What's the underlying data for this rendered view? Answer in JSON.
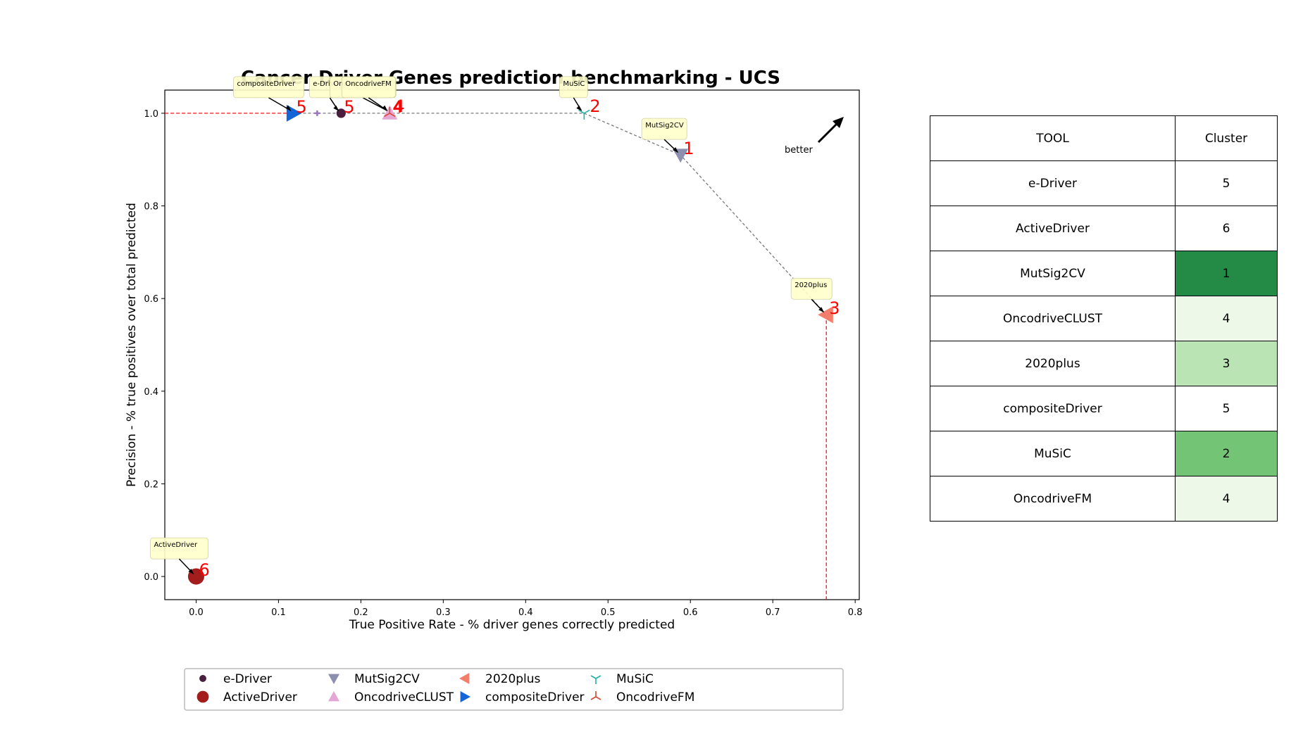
{
  "chart_data": {
    "type": "scatter",
    "title": "Cancer Driver Genes prediction benchmarking - UCS",
    "xlabel": "True Positive Rate - % driver genes correctly predicted",
    "ylabel": "Precision - % true positives over total predicted",
    "xlim": [
      -0.038,
      0.805
    ],
    "ylim": [
      -0.05,
      1.05
    ],
    "xticks": [
      "0.0",
      "0.1",
      "0.2",
      "0.3",
      "0.4",
      "0.5",
      "0.6",
      "0.7",
      "0.8"
    ],
    "yticks": [
      "0.0",
      "0.2",
      "0.4",
      "0.6",
      "0.8",
      "1.0"
    ],
    "grid": false,
    "legend_position": "bottom",
    "better_label": "better",
    "series": [
      {
        "name": "e-Driver",
        "x": 0.176,
        "y": 1.0,
        "marker": "circle-small",
        "color": "#4a1f3e",
        "cluster": "5",
        "annotation": "e-Driver"
      },
      {
        "name": "ActiveDriver",
        "x": 0.0,
        "y": 0.0,
        "marker": "circle-large",
        "color": "#a31d1d",
        "cluster": "6",
        "annotation": "ActiveDriver"
      },
      {
        "name": "MutSig2CV",
        "x": 0.588,
        "y": 0.91,
        "marker": "triangle-down",
        "color": "#8d8fae",
        "cluster": "1",
        "annotation": "MutSig2CV"
      },
      {
        "name": "OncodriveCLUST",
        "x": 0.235,
        "y": 1.0,
        "marker": "triangle-up",
        "color": "#e4a6d4",
        "cluster": "4",
        "annotation": "OncodriveCLUST"
      },
      {
        "name": "2020plus",
        "x": 0.765,
        "y": 0.565,
        "marker": "triangle-left",
        "color": "#f47d6b",
        "cluster": "3",
        "annotation": "2020plus"
      },
      {
        "name": "compositeDriver",
        "x": 0.118,
        "y": 1.0,
        "marker": "triangle-right",
        "color": "#1565d8",
        "cluster": "5",
        "annotation": "compositeDriver"
      },
      {
        "name": "MuSiC",
        "x": 0.471,
        "y": 1.0,
        "marker": "tri-down",
        "color": "#22b3a3",
        "cluster": "2",
        "annotation": "MuSiC"
      },
      {
        "name": "OncodriveFM",
        "x": 0.235,
        "y": 1.0,
        "marker": "tri-up",
        "color": "#d9472e",
        "cluster": "4",
        "annotation": "OncodriveFM"
      }
    ],
    "extra_point": {
      "x": 0.147,
      "y": 1.0,
      "color": "#9c72c6"
    },
    "pareto_front": [
      [
        0.118,
        1.0
      ],
      [
        0.471,
        1.0
      ],
      [
        0.588,
        0.91
      ],
      [
        0.765,
        0.565
      ]
    ],
    "reference_lines": {
      "horizontal_y": 1.0,
      "vertical_x": 0.765
    },
    "table": {
      "headers": [
        "TOOL",
        "Cluster"
      ],
      "rows": [
        [
          "e-Driver",
          "5"
        ],
        [
          "ActiveDriver",
          "6"
        ],
        [
          "MutSig2CV",
          "1"
        ],
        [
          "OncodriveCLUST",
          "4"
        ],
        [
          "2020plus",
          "3"
        ],
        [
          "compositeDriver",
          "5"
        ],
        [
          "MuSiC",
          "2"
        ],
        [
          "OncodriveFM",
          "4"
        ]
      ],
      "cluster_colors": {
        "1": "#238b45",
        "2": "#74c476",
        "3": "#bae4b3",
        "4": "#edf8e9",
        "5": "#ffffff",
        "6": "#ffffff"
      }
    }
  }
}
